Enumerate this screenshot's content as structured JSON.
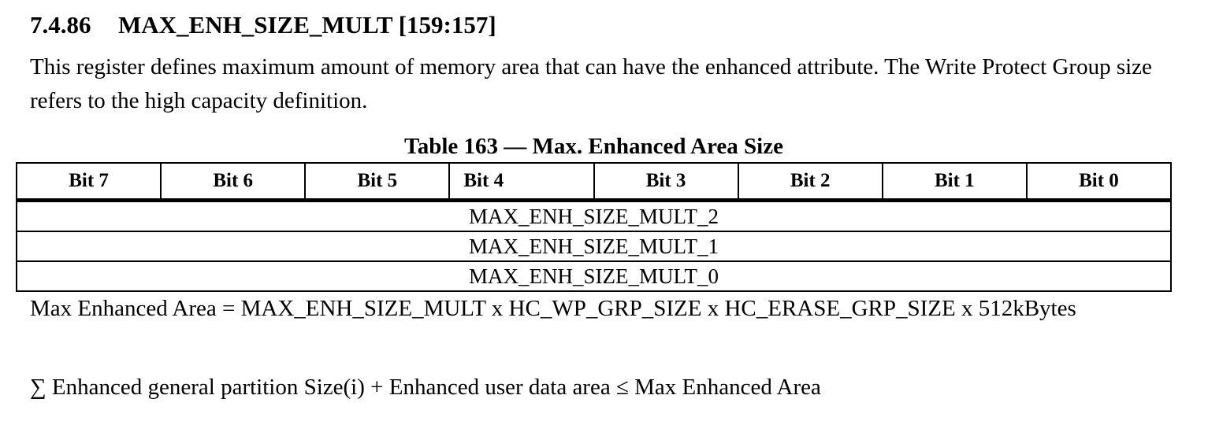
{
  "section": {
    "number": "7.4.86",
    "title": "MAX_ENH_SIZE_MULT [159:157]"
  },
  "intro": "This register defines maximum amount of memory area that can have the enhanced attribute. The Write Protect Group size refers to the high capacity definition.",
  "table": {
    "caption": "Table 163 — Max. Enhanced Area Size",
    "headers": [
      "Bit 7",
      "Bit 6",
      "Bit 5",
      "Bit 4",
      "Bit 3",
      "Bit 2",
      "Bit 1",
      "Bit 0"
    ],
    "rows": [
      "MAX_ENH_SIZE_MULT_2",
      "MAX_ENH_SIZE_MULT_1",
      "MAX_ENH_SIZE_MULT_0"
    ]
  },
  "formula": "Max Enhanced Area = MAX_ENH_SIZE_MULT x HC_WP_GRP_SIZE x HC_ERASE_GRP_SIZE x 512kBytes",
  "constraint": "∑ Enhanced general partition Size(i) + Enhanced user data area  ≤ Max Enhanced Area"
}
